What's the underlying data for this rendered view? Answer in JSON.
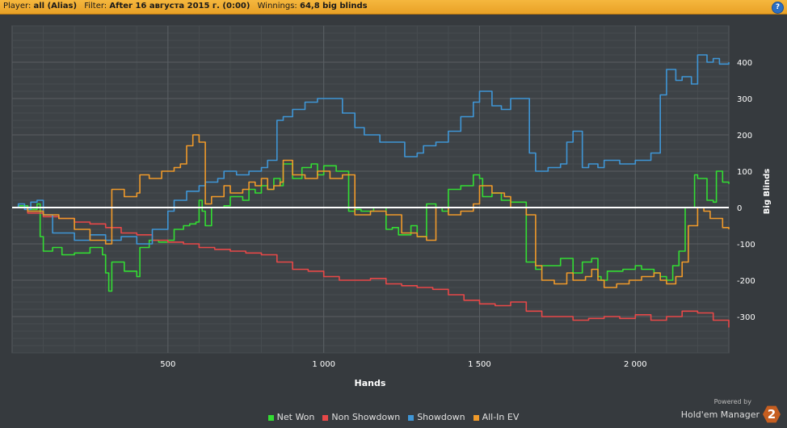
{
  "header": {
    "player_label": "Player:",
    "player_value": "all (Alias)",
    "filter_label": "Filter:",
    "filter_value": "After 16 августа 2015 г. (0:00)",
    "winnings_label": "Winnings:",
    "winnings_value": "64,8 big blinds",
    "help_icon": "?"
  },
  "chart_data": {
    "type": "line",
    "xlabel": "Hands",
    "ylabel": "Big Blinds",
    "xlim": [
      0,
      2300
    ],
    "ylim": [
      -400,
      500
    ],
    "xticks": [
      500,
      1000,
      1500,
      2000
    ],
    "xtick_labels": [
      "500",
      "1 000",
      "1 500",
      "2 000"
    ],
    "yticks": [
      400,
      300,
      200,
      100,
      0,
      -100,
      -200,
      -300
    ],
    "ytick_labels": [
      "400",
      "300",
      "200",
      "100",
      "0",
      "-100",
      "-200",
      "-300"
    ],
    "grid": true,
    "legend_position": "bottom",
    "series": [
      {
        "name": "Net Won",
        "color": "#33dd33",
        "x": [
          0,
          20,
          50,
          80,
          90,
          100,
          130,
          160,
          200,
          250,
          290,
          300,
          310,
          320,
          360,
          400,
          410,
          440,
          470,
          500,
          520,
          550,
          570,
          590,
          600,
          610,
          620,
          640,
          680,
          700,
          740,
          760,
          780,
          800,
          820,
          840,
          860,
          870,
          900,
          930,
          960,
          980,
          1000,
          1040,
          1080,
          1100,
          1120,
          1160,
          1200,
          1220,
          1240,
          1280,
          1300,
          1330,
          1360,
          1380,
          1400,
          1440,
          1480,
          1500,
          1510,
          1540,
          1570,
          1600,
          1650,
          1680,
          1700,
          1760,
          1800,
          1830,
          1860,
          1880,
          1890,
          1910,
          1960,
          2000,
          2020,
          2060,
          2080,
          2100,
          2120,
          2140,
          2160,
          2190,
          2200,
          2230,
          2250,
          2260,
          2280,
          2300
        ],
        "y": [
          0,
          5,
          -5,
          10,
          -80,
          -120,
          -110,
          -130,
          -125,
          -110,
          -130,
          -180,
          -230,
          -150,
          -175,
          -190,
          -110,
          -90,
          -95,
          -90,
          -60,
          -50,
          -45,
          -40,
          20,
          -10,
          -50,
          0,
          5,
          30,
          20,
          50,
          40,
          60,
          50,
          80,
          60,
          120,
          80,
          110,
          120,
          90,
          115,
          100,
          -10,
          -5,
          -10,
          0,
          -60,
          -55,
          -75,
          -50,
          -80,
          10,
          0,
          -10,
          50,
          60,
          90,
          80,
          30,
          40,
          20,
          15,
          -150,
          -170,
          -160,
          -140,
          -180,
          -150,
          -140,
          -190,
          -200,
          -175,
          -170,
          -160,
          -170,
          -180,
          -190,
          -200,
          -160,
          -120,
          0,
          90,
          80,
          20,
          15,
          100,
          70,
          65
        ]
      },
      {
        "name": "Non Showdown",
        "color": "#e84848",
        "x": [
          0,
          50,
          100,
          150,
          200,
          250,
          300,
          350,
          400,
          450,
          500,
          550,
          600,
          650,
          700,
          750,
          800,
          850,
          900,
          950,
          1000,
          1050,
          1100,
          1150,
          1200,
          1250,
          1300,
          1350,
          1400,
          1450,
          1500,
          1550,
          1600,
          1650,
          1700,
          1750,
          1800,
          1850,
          1900,
          1950,
          2000,
          2050,
          2100,
          2150,
          2200,
          2250,
          2300
        ],
        "y": [
          0,
          -15,
          -25,
          -30,
          -40,
          -45,
          -55,
          -70,
          -75,
          -90,
          -95,
          -100,
          -110,
          -115,
          -120,
          -125,
          -130,
          -150,
          -170,
          -175,
          -190,
          -200,
          -200,
          -195,
          -210,
          -215,
          -220,
          -225,
          -240,
          -255,
          -265,
          -270,
          -260,
          -285,
          -300,
          -300,
          -310,
          -305,
          -300,
          -305,
          -295,
          -310,
          -300,
          -285,
          -290,
          -310,
          -330
        ]
      },
      {
        "name": "Showdown",
        "color": "#3f96d6",
        "x": [
          0,
          20,
          40,
          60,
          80,
          100,
          130,
          200,
          250,
          300,
          350,
          400,
          450,
          500,
          520,
          560,
          600,
          620,
          660,
          680,
          720,
          760,
          800,
          820,
          850,
          870,
          900,
          940,
          980,
          1020,
          1060,
          1100,
          1130,
          1180,
          1220,
          1260,
          1300,
          1320,
          1360,
          1400,
          1440,
          1480,
          1500,
          1540,
          1570,
          1600,
          1630,
          1660,
          1680,
          1720,
          1760,
          1780,
          1800,
          1830,
          1850,
          1880,
          1900,
          1920,
          1950,
          2000,
          2050,
          2080,
          2100,
          2130,
          2150,
          2180,
          2200,
          2230,
          2250,
          2270,
          2300
        ],
        "y": [
          0,
          10,
          -5,
          15,
          20,
          -20,
          -70,
          -90,
          -75,
          -90,
          -80,
          -100,
          -60,
          -10,
          20,
          45,
          60,
          70,
          80,
          100,
          90,
          100,
          110,
          130,
          240,
          250,
          270,
          290,
          300,
          300,
          260,
          220,
          200,
          180,
          180,
          140,
          150,
          170,
          180,
          210,
          250,
          290,
          320,
          280,
          270,
          300,
          300,
          150,
          100,
          110,
          120,
          180,
          210,
          110,
          120,
          110,
          130,
          130,
          120,
          130,
          150,
          310,
          380,
          350,
          360,
          340,
          420,
          400,
          410,
          395,
          400
        ]
      },
      {
        "name": "All-In EV",
        "color": "#f09a2a",
        "x": [
          0,
          50,
          100,
          150,
          200,
          250,
          300,
          320,
          360,
          400,
          410,
          440,
          480,
          520,
          540,
          560,
          580,
          600,
          620,
          640,
          680,
          700,
          740,
          760,
          780,
          800,
          820,
          840,
          860,
          870,
          900,
          940,
          980,
          1020,
          1060,
          1100,
          1150,
          1200,
          1250,
          1300,
          1330,
          1360,
          1400,
          1440,
          1480,
          1500,
          1540,
          1580,
          1600,
          1650,
          1680,
          1700,
          1740,
          1780,
          1800,
          1840,
          1860,
          1880,
          1900,
          1940,
          1980,
          2020,
          2060,
          2080,
          2100,
          2130,
          2150,
          2170,
          2200,
          2220,
          2240,
          2280,
          2300
        ],
        "y": [
          0,
          -10,
          -20,
          -30,
          -60,
          -90,
          -100,
          50,
          30,
          40,
          90,
          80,
          100,
          110,
          120,
          170,
          200,
          180,
          10,
          30,
          60,
          40,
          50,
          70,
          60,
          80,
          50,
          60,
          70,
          130,
          90,
          80,
          100,
          80,
          90,
          -20,
          -10,
          -20,
          -70,
          -80,
          -90,
          0,
          -20,
          -10,
          10,
          60,
          40,
          30,
          0,
          -20,
          -160,
          -200,
          -210,
          -180,
          -200,
          -190,
          -170,
          -200,
          -220,
          -210,
          -200,
          -190,
          -180,
          -200,
          -210,
          -190,
          -150,
          -50,
          0,
          -10,
          -30,
          -55,
          -60
        ]
      }
    ]
  },
  "branding": {
    "powered_by": "Powered by",
    "product": "Hold'em Manager",
    "version_badge": "2"
  }
}
